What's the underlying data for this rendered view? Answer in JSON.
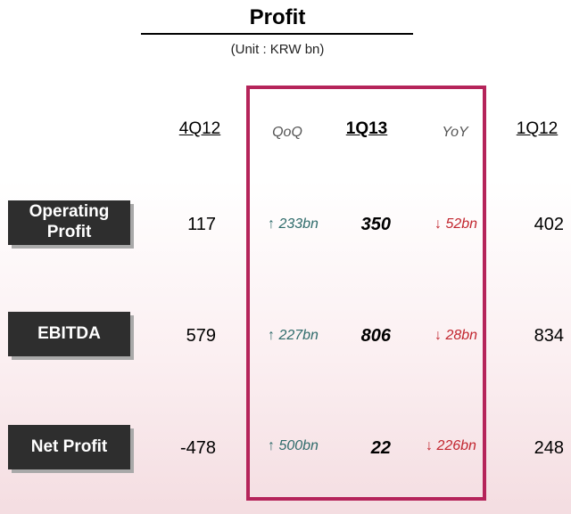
{
  "title": "Profit",
  "unit": "(Unit : KRW bn)",
  "headers": {
    "prev_quarter": "4Q12",
    "qoq": "QoQ",
    "current": "1Q13",
    "yoy": "YoY",
    "prev_year": "1Q12"
  },
  "colors": {
    "highlight_border": "#b5245a",
    "label_box": "#2e2e2e",
    "increase": "#2f6b6b",
    "decrease": "#c2262f"
  },
  "rows": [
    {
      "label_line1": "Operating",
      "label_line2": "Profit",
      "q4_12": "117",
      "qoq_arrow": "↑",
      "qoq": "233bn",
      "q1_13": "350",
      "yoy_arrow": "↓",
      "yoy": "52bn",
      "q1_12": "402"
    },
    {
      "label_line1": "EBITDA",
      "label_line2": "",
      "q4_12": "579",
      "qoq_arrow": "↑",
      "qoq": "227bn",
      "q1_13": "806",
      "yoy_arrow": "↓",
      "yoy": "28bn",
      "q1_12": "834"
    },
    {
      "label_line1": "Net Profit",
      "label_line2": "",
      "q4_12": "-478",
      "qoq_arrow": "↑",
      "qoq": "500bn",
      "q1_13": "22",
      "yoy_arrow": "↓",
      "yoy": "226bn",
      "q1_12": "248"
    }
  ],
  "chart_data": {
    "type": "table",
    "title": "Profit",
    "unit": "KRW bn",
    "columns": [
      "4Q12",
      "QoQ",
      "1Q13",
      "YoY",
      "1Q12"
    ],
    "rows": [
      {
        "name": "Operating Profit",
        "4Q12": 117,
        "QoQ": 233,
        "1Q13": 350,
        "YoY": -52,
        "1Q12": 402
      },
      {
        "name": "EBITDA",
        "4Q12": 579,
        "QoQ": 227,
        "1Q13": 806,
        "YoY": -28,
        "1Q12": 834
      },
      {
        "name": "Net Profit",
        "4Q12": -478,
        "QoQ": 500,
        "1Q13": 22,
        "YoY": -226,
        "1Q12": 248
      }
    ]
  }
}
